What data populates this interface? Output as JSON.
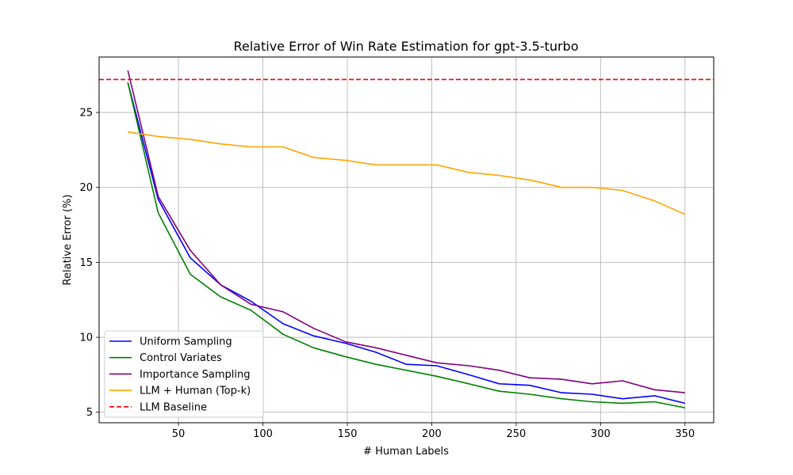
{
  "chart_data": {
    "type": "line",
    "title": "Relative Error of Win Rate Estimation for gpt-3.5-turbo",
    "xlabel": "# Human Labels",
    "ylabel": "Relative Error (%)",
    "xlim": [
      3,
      367
    ],
    "ylim": [
      4.3,
      28.7
    ],
    "xticks": [
      50,
      100,
      150,
      200,
      250,
      300,
      350
    ],
    "yticks": [
      5,
      10,
      15,
      20,
      25
    ],
    "grid": true,
    "legend_position": "lower-left",
    "series": [
      {
        "name": "Uniform Sampling",
        "color": "#0000ff",
        "style": "solid",
        "x": [
          20,
          38,
          57,
          75,
          93,
          112,
          130,
          149,
          167,
          185,
          203,
          222,
          240,
          258,
          277,
          295,
          313,
          332,
          350
        ],
        "y": [
          27.0,
          19.2,
          15.3,
          13.5,
          12.4,
          10.9,
          10.1,
          9.6,
          9.0,
          8.2,
          8.1,
          7.5,
          6.9,
          6.8,
          6.3,
          6.2,
          5.9,
          6.1,
          5.6
        ]
      },
      {
        "name": "Control Variates",
        "color": "#008000",
        "style": "solid",
        "x": [
          20,
          38,
          57,
          75,
          93,
          112,
          130,
          149,
          167,
          185,
          203,
          222,
          240,
          258,
          277,
          295,
          313,
          332,
          350
        ],
        "y": [
          27.0,
          18.3,
          14.2,
          12.7,
          11.8,
          10.2,
          9.3,
          8.7,
          8.2,
          7.8,
          7.4,
          6.9,
          6.4,
          6.2,
          5.9,
          5.7,
          5.6,
          5.7,
          5.3
        ]
      },
      {
        "name": "Importance Sampling",
        "color": "#800080",
        "style": "solid",
        "x": [
          20,
          38,
          57,
          75,
          93,
          112,
          130,
          149,
          167,
          185,
          203,
          222,
          240,
          258,
          277,
          295,
          313,
          332,
          350
        ],
        "y": [
          27.8,
          19.4,
          15.8,
          13.5,
          12.2,
          11.7,
          10.6,
          9.7,
          9.3,
          8.8,
          8.3,
          8.1,
          7.8,
          7.3,
          7.2,
          6.9,
          7.1,
          6.5,
          6.3
        ]
      },
      {
        "name": "LLM + Human (Top-k)",
        "color": "#ffa500",
        "style": "solid",
        "x": [
          20,
          38,
          57,
          75,
          93,
          112,
          130,
          149,
          167,
          185,
          203,
          222,
          240,
          258,
          277,
          295,
          313,
          332,
          350
        ],
        "y": [
          23.7,
          23.4,
          23.2,
          22.9,
          22.7,
          22.7,
          22.0,
          21.8,
          21.5,
          21.5,
          21.5,
          21.0,
          20.8,
          20.5,
          20.0,
          20.0,
          19.8,
          19.1,
          18.2
        ]
      },
      {
        "name": "LLM Baseline",
        "color": "#ff0000",
        "style": "dashed",
        "y": 27.2
      }
    ]
  }
}
